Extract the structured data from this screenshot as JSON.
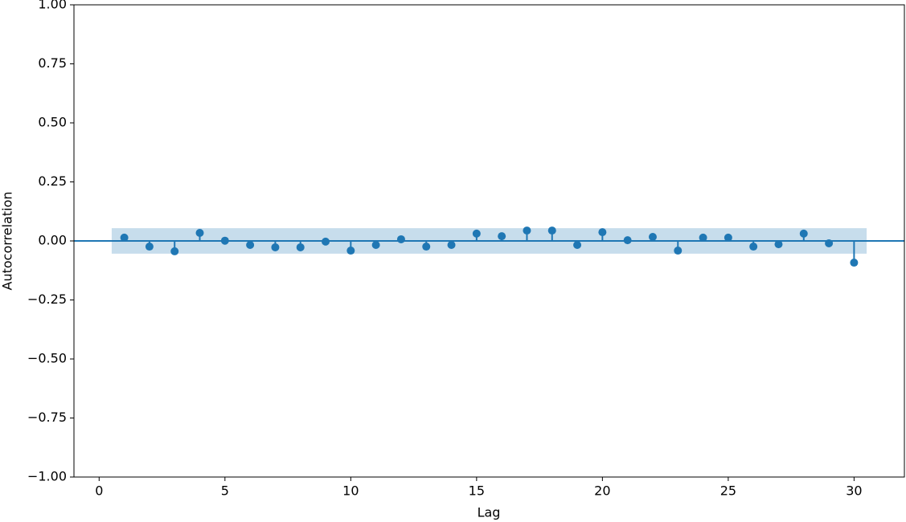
{
  "chart_data": {
    "type": "stem",
    "x_label": "Lag",
    "y_label": "Autocorrelation",
    "x": [
      1,
      2,
      3,
      4,
      5,
      6,
      7,
      8,
      9,
      10,
      11,
      12,
      13,
      14,
      15,
      16,
      17,
      18,
      19,
      20,
      21,
      22,
      23,
      24,
      25,
      26,
      27,
      28,
      29,
      30
    ],
    "values": [
      0.014,
      -0.024,
      -0.044,
      0.034,
      0.001,
      -0.017,
      -0.027,
      -0.027,
      -0.003,
      -0.041,
      -0.017,
      0.007,
      -0.024,
      -0.017,
      0.031,
      0.02,
      0.044,
      0.044,
      -0.017,
      0.037,
      0.003,
      0.017,
      -0.041,
      0.014,
      0.014,
      -0.024,
      -0.014,
      0.031,
      -0.01,
      -0.092
    ],
    "color": "#1f77b4",
    "confint": [
      -0.054,
      0.054
    ],
    "confint_x": [
      0.5,
      30.5
    ],
    "confint_color": "#1f77b4",
    "xlim": [
      -1,
      32
    ],
    "xticks": [
      0,
      5,
      10,
      15,
      20,
      25,
      30
    ],
    "ylim": [
      -1,
      1
    ],
    "yticks": [
      {
        "value": -1,
        "label": "−1.00"
      },
      {
        "value": -0.75,
        "label": "−0.75"
      },
      {
        "value": -0.5,
        "label": "−0.50"
      },
      {
        "value": -0.25,
        "label": "−0.25"
      },
      {
        "value": 0,
        "label": "0.00"
      },
      {
        "value": 0.25,
        "label": "0.25"
      },
      {
        "value": 0.5,
        "label": "0.50"
      },
      {
        "value": 0.75,
        "label": "0.75"
      },
      {
        "value": 1,
        "label": "1.00"
      }
    ],
    "grid": false
  }
}
